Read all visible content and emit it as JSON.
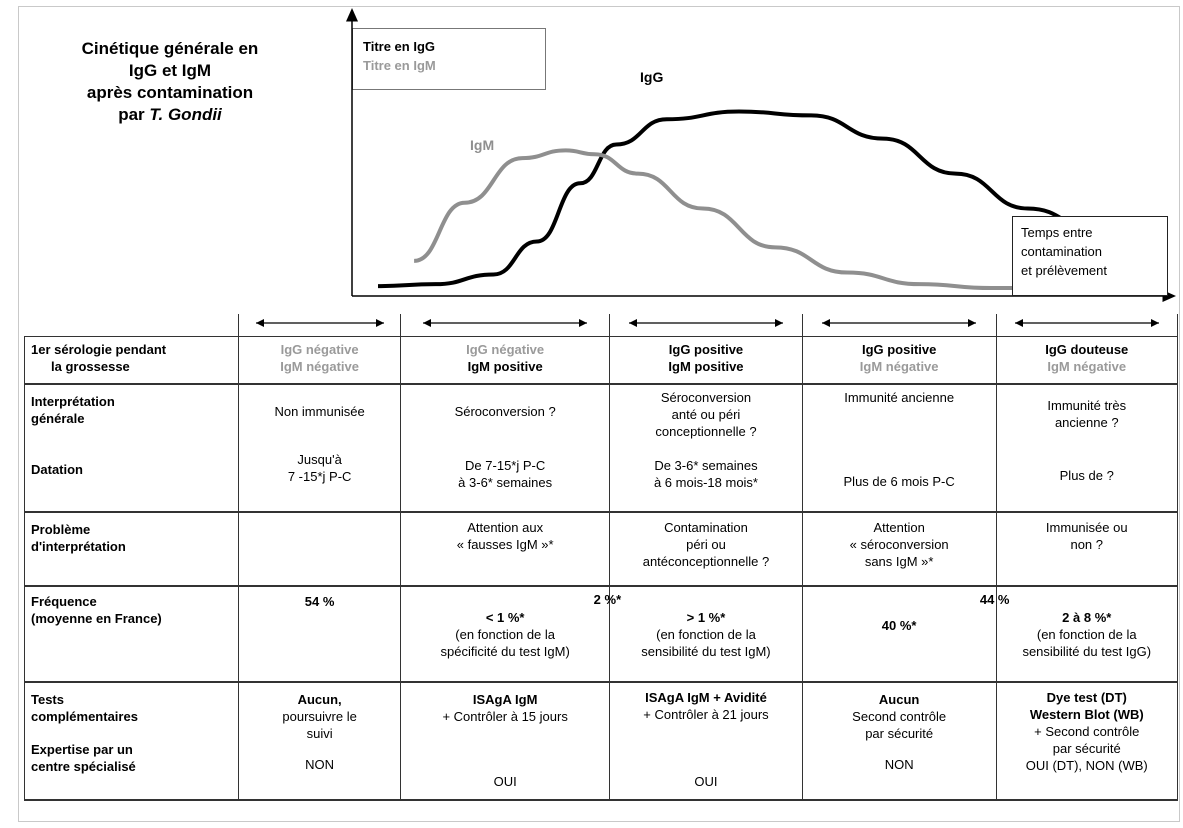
{
  "title": {
    "line1": "Cinétique générale en",
    "line2": "IgG et IgM",
    "line3": "après contamination",
    "line4_prefix": "par",
    "line4_italic": "T. Gondii"
  },
  "legend": {
    "igg": "Titre en IgG",
    "igm": "Titre en IgM"
  },
  "chart_labels": {
    "igg": "IgG",
    "igm": "IgM"
  },
  "x_axis_box": {
    "line1": "Temps entre",
    "line2": "contamination",
    "line3": "et prélèvement"
  },
  "colors": {
    "igg": "#000000",
    "igm": "#8f8f8f"
  },
  "chart_data": {
    "type": "line",
    "title": "",
    "xlabel": "Temps entre contamination et prélèvement",
    "ylabel": "",
    "series": [
      {
        "name": "IgG",
        "x": [
          0,
          0.08,
          0.16,
          0.22,
          0.28,
          0.33,
          0.4,
          0.5,
          0.6,
          0.7,
          0.8,
          0.9,
          1.0
        ],
        "y": [
          0.02,
          0.03,
          0.08,
          0.25,
          0.55,
          0.75,
          0.88,
          0.92,
          0.9,
          0.78,
          0.6,
          0.42,
          0.3
        ]
      },
      {
        "name": "IgM",
        "x": [
          0.05,
          0.12,
          0.2,
          0.26,
          0.3,
          0.36,
          0.45,
          0.55,
          0.65,
          0.75,
          0.85,
          0.95
        ],
        "y": [
          0.15,
          0.45,
          0.68,
          0.72,
          0.7,
          0.6,
          0.42,
          0.22,
          0.09,
          0.03,
          0.01,
          0.01
        ]
      }
    ]
  },
  "table": {
    "row_headers": {
      "serology_a": "1er sérologie pendant",
      "serology_b": "la grossesse",
      "interp_a": "Interprétation",
      "interp_b": "générale",
      "datation": "Datation",
      "probleme_a": "Problème",
      "probleme_b": "d'interprétation",
      "freq_a": "Fréquence",
      "freq_b": "(moyenne en France)",
      "tests_a": "Tests",
      "tests_b": "complémentaires",
      "expert_a": "Expertise par un",
      "expert_b": "centre spécialisé"
    },
    "col1": {
      "igg": "IgG négative",
      "igm": "IgM négative",
      "interp": "Non immunisée",
      "dat1": "Jusqu'à",
      "dat2": "7 -15*j P-C",
      "prob": "",
      "freq": "54 %",
      "test1": "Aucun,",
      "test2": "poursuivre le",
      "test3": "suivi",
      "expert": "NON"
    },
    "col2": {
      "igg": "IgG négative",
      "igm": "IgM positive",
      "interp": "Séroconversion ?",
      "dat1": "De 7-15*j P-C",
      "dat2": "à 3-6* semaines",
      "prob1": "Attention aux",
      "prob2": "« fausses IgM »*",
      "freq1": "< 1 %*",
      "freq2": "(en fonction de la",
      "freq3": "spécificité du test IgM)",
      "test1": "ISAgA IgM",
      "test2": "+ Contrôler à 15 jours",
      "expert": "OUI"
    },
    "col3": {
      "igg": "IgG positive",
      "igm": "IgM positive",
      "interp1": "Séroconversion",
      "interp2": "anté ou péri",
      "interp3": "conceptionnelle ?",
      "dat1": "De 3-6* semaines",
      "dat2": "à 6 mois-18 mois*",
      "prob1": "Contamination",
      "prob2": "péri ou",
      "prob3": "antéconceptionnelle ?",
      "freq1": "> 1 %*",
      "freq2": "(en fonction de la",
      "freq3": "sensibilité du test IgM)",
      "test1": "ISAgA IgM + Avidité",
      "test2": "+ Contrôler à 21 jours",
      "expert": "OUI"
    },
    "col4": {
      "igg": "IgG positive",
      "igm": "IgM négative",
      "interp": "Immunité ancienne",
      "dat": "Plus de 6 mois P-C",
      "prob1": "Attention",
      "prob2": "« séroconversion",
      "prob3": "sans IgM »*",
      "freq": "40 %*",
      "test1": "Aucun",
      "test2": "Second contrôle",
      "test3": "par sécurité",
      "expert": "NON"
    },
    "col5": {
      "igg": "IgG douteuse",
      "igm": "IgM négative",
      "interp1": "Immunité très",
      "interp2": "ancienne ?",
      "dat": "Plus de ?",
      "prob1": "Immunisée ou",
      "prob2": "non ?",
      "freq1": "2 à 8 %*",
      "freq2": "(en fonction de la",
      "freq3": "sensibilité du test IgG)",
      "test1": "Dye test (DT)",
      "test2": "Western Blot (WB)",
      "test3": "+ Second contrôle",
      "test4": "par sécurité",
      "test5": "OUI (DT), NON (WB)",
      "expert": ""
    },
    "freq_group_2": "2 %*",
    "freq_group_44": "44 %"
  }
}
